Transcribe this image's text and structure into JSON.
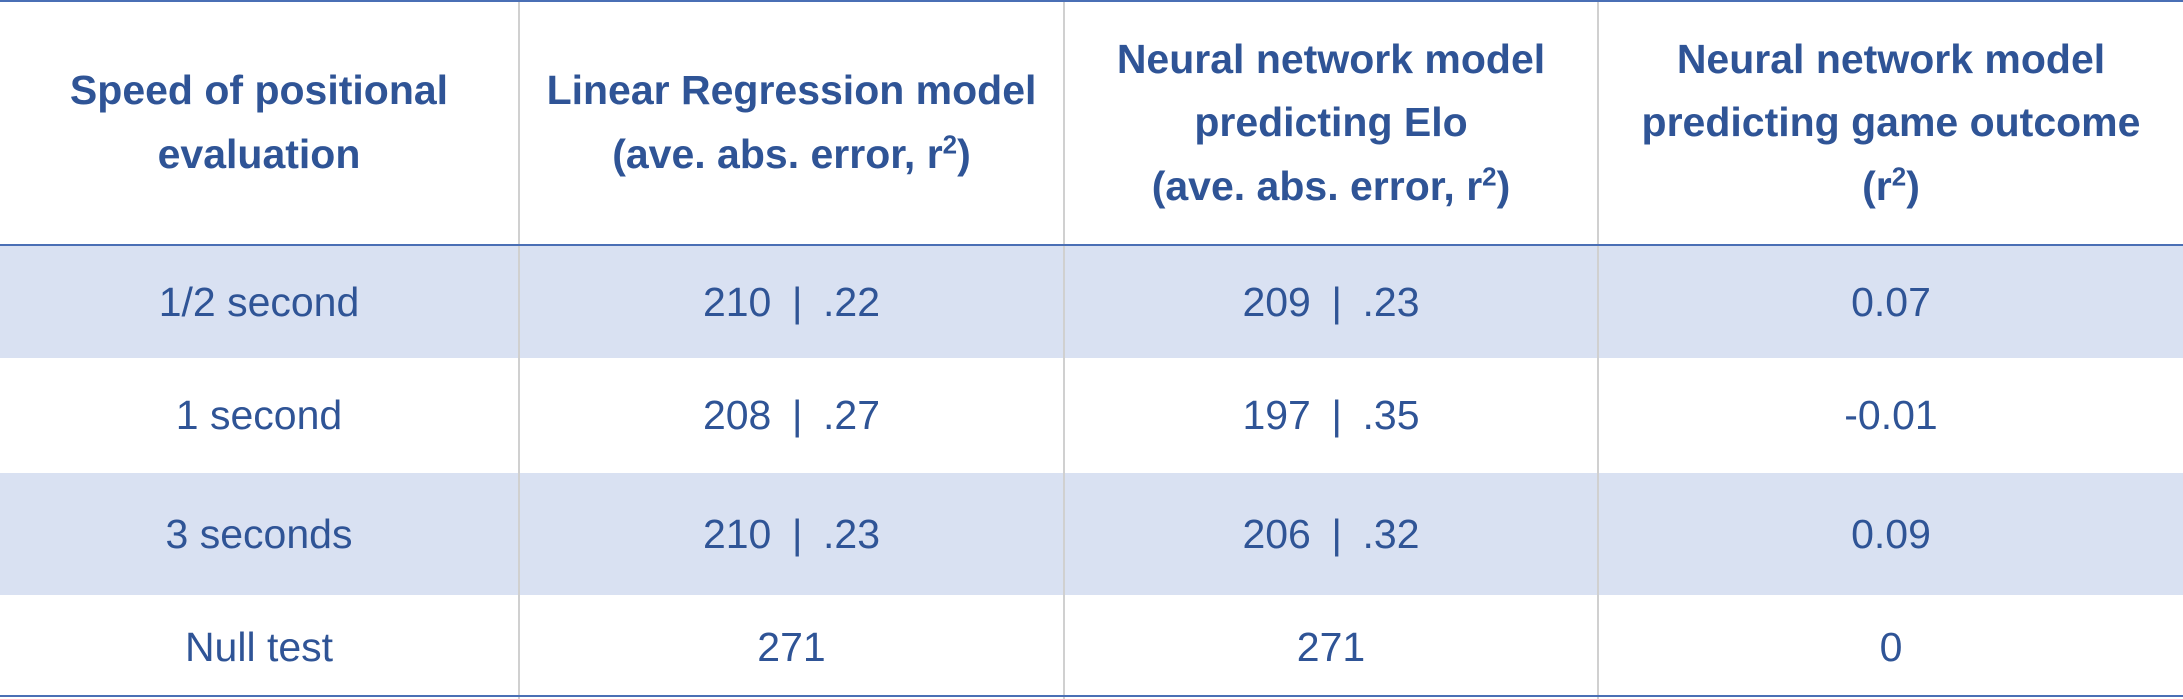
{
  "header": {
    "col1": [
      "Speed of positional",
      "evaluation"
    ],
    "col2": {
      "line1": "Linear Regression model",
      "line2_pre": "(ave. abs. error, r",
      "line2_sup": "2",
      "line2_post": ")"
    },
    "col3": {
      "line1": "Neural network model",
      "line2": "predicting Elo",
      "line3_pre": "(ave. abs. error, r",
      "line3_sup": "2",
      "line3_post": ")"
    },
    "col4": {
      "line1": "Neural network model",
      "line2": "predicting game outcome",
      "line3_pre": "(r",
      "line3_sup": "2",
      "line3_post": ")"
    }
  },
  "rows": [
    {
      "speed": "1/2 second",
      "lr_error": "210",
      "lr_r2": ".22",
      "nn_error": "209",
      "nn_r2": ".23",
      "outcome_r2": "0.07"
    },
    {
      "speed": "1 second",
      "lr_error": "208",
      "lr_r2": ".27",
      "nn_error": "197",
      "nn_r2": ".35",
      "outcome_r2": "-0.01"
    },
    {
      "speed": "3 seconds",
      "lr_error": "210",
      "lr_r2": ".23",
      "nn_error": "206",
      "nn_r2": ".32",
      "outcome_r2": "0.09"
    },
    {
      "speed": "Null test",
      "lr_value": "271",
      "nn_value": "271",
      "outcome_r2": "0"
    }
  ],
  "separator": "|",
  "colors": {
    "text": "#2f5496",
    "shaded_row": "#d9e1f2",
    "rule": "#4a6fb5"
  }
}
